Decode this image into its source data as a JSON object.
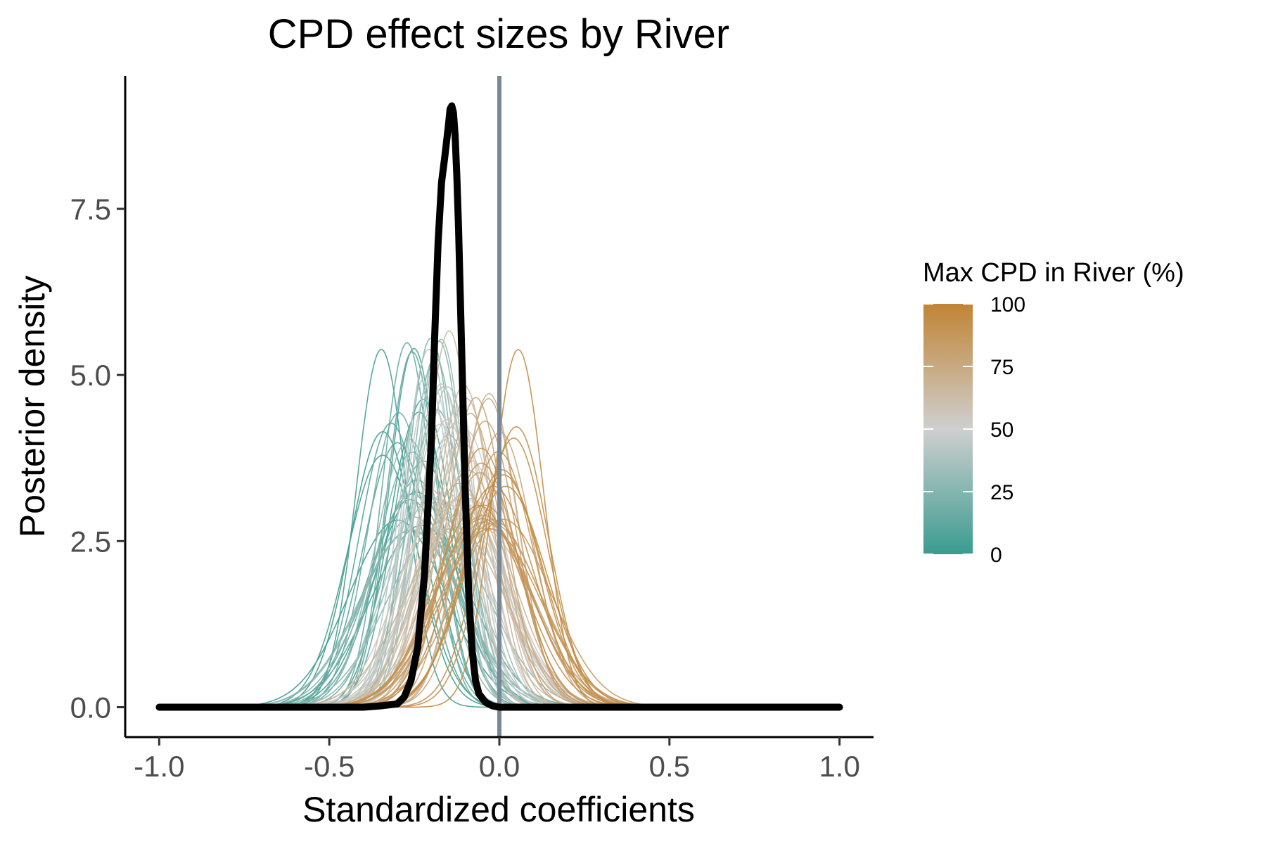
{
  "chart_data": {
    "type": "line",
    "title": "CPD effect sizes by River",
    "xlabel": "Standardized coefficients",
    "ylabel": "Posterior density",
    "xlim": [
      -1.1,
      1.1
    ],
    "ylim": [
      -0.45,
      9.5
    ],
    "x_ticks": [
      -1.0,
      -0.5,
      0.0,
      0.5,
      1.0
    ],
    "x_tick_labels": [
      "-1.0",
      "-0.5",
      "0.0",
      "0.5",
      "1.0"
    ],
    "y_ticks": [
      0.0,
      2.5,
      5.0,
      7.5
    ],
    "y_tick_labels": [
      "0.0",
      "2.5",
      "5.0",
      "7.5"
    ],
    "grid": false,
    "reference_line": {
      "x": 0.0,
      "color": "#778899"
    },
    "legend": {
      "title": "Max CPD in River (%)",
      "placement": "right",
      "type": "colorbar",
      "range": [
        0,
        100
      ],
      "ticks": [
        0,
        25,
        50,
        75,
        100
      ],
      "tick_labels": [
        "0",
        "25",
        "50",
        "75",
        "100"
      ],
      "colors": {
        "low": "#3a9b8f",
        "mid": "#cfcfcf",
        "high": "#c18434"
      }
    },
    "overall_series": {
      "color": "#000000",
      "x": [
        -1.0,
        -0.5,
        -0.4,
        -0.35,
        -0.3,
        -0.28,
        -0.26,
        -0.24,
        -0.22,
        -0.2,
        -0.19,
        -0.18,
        -0.17,
        -0.16,
        -0.15,
        -0.145,
        -0.14,
        -0.135,
        -0.13,
        -0.125,
        -0.12,
        -0.11,
        -0.1,
        -0.09,
        -0.08,
        -0.07,
        -0.06,
        -0.04,
        -0.02,
        0.0,
        0.05,
        0.2,
        0.5,
        1.0
      ],
      "y": [
        0.0,
        0.0,
        0.0,
        0.02,
        0.05,
        0.15,
        0.4,
        0.9,
        2.0,
        4.0,
        5.6,
        7.0,
        7.9,
        8.3,
        8.75,
        9.0,
        9.05,
        8.95,
        8.6,
        8.0,
        7.2,
        5.2,
        3.2,
        1.7,
        0.85,
        0.4,
        0.2,
        0.07,
        0.02,
        0.0,
        0.0,
        0.0,
        0.0,
        0.0
      ]
    },
    "river_series_summary": {
      "count": 90,
      "shape": "gaussian",
      "center_range": [
        -0.3,
        0.02
      ],
      "sd_range": [
        0.07,
        0.15
      ],
      "max_cpd_range": [
        0,
        100
      ]
    }
  }
}
